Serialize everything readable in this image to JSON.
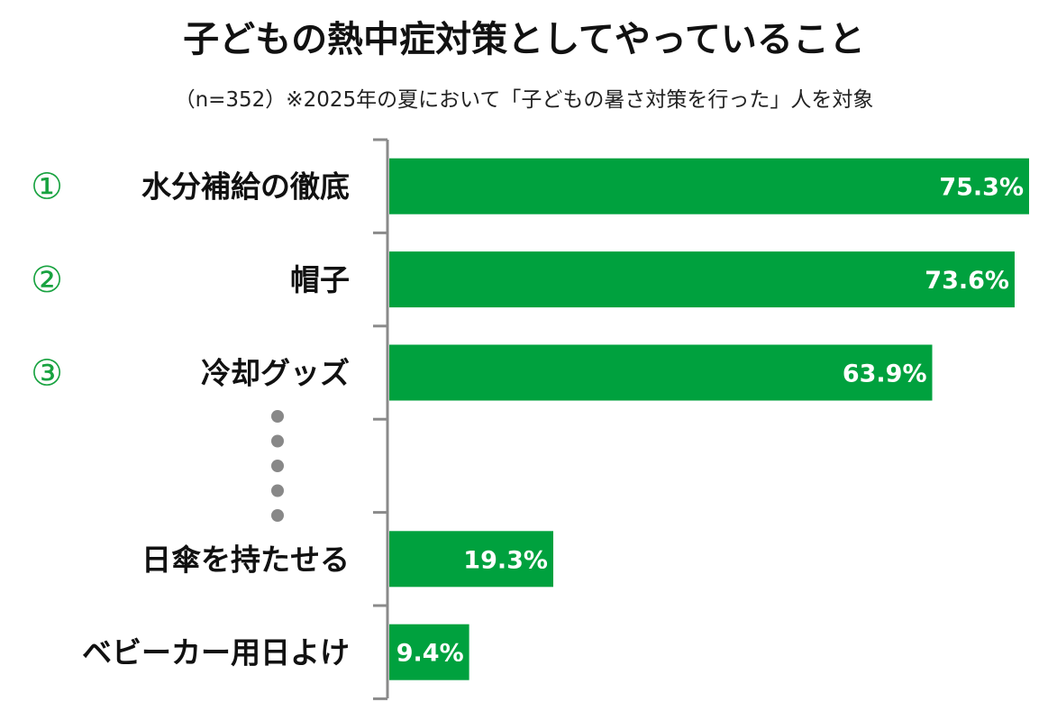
{
  "title": "子どもの熱中症対策としてやっていること",
  "subtitle": "（n=352）※2025年の夏において「子どもの暑さ対策を行った」人を対象",
  "colors": {
    "bar": "#00a13e",
    "rank": "#17a23f",
    "axis": "#8a8a8a",
    "dots": "#888888"
  },
  "chart_data": {
    "type": "bar",
    "orientation": "horizontal",
    "title": "子どもの熱中症対策としてやっていること",
    "subtitle": "（n=352）※2025年の夏において「子どもの暑さ対策を行った」人を対象",
    "unit": "%",
    "xlim": [
      0,
      80
    ],
    "grid": false,
    "legend": "none",
    "categories": [
      "水分補給の徹底",
      "帽子",
      "冷却グッズ",
      "",
      "日傘を持たせる",
      "ベビーカー用日よけ"
    ],
    "values": [
      75.3,
      73.6,
      63.9,
      null,
      19.3,
      9.4
    ],
    "value_labels": [
      "75.3%",
      "73.6%",
      "63.9%",
      "",
      "19.3%",
      "9.4%"
    ],
    "ranks": [
      "①",
      "②",
      "③",
      "",
      "",
      ""
    ],
    "ellipsis_row": 3,
    "ellipsis_dots": 5
  }
}
